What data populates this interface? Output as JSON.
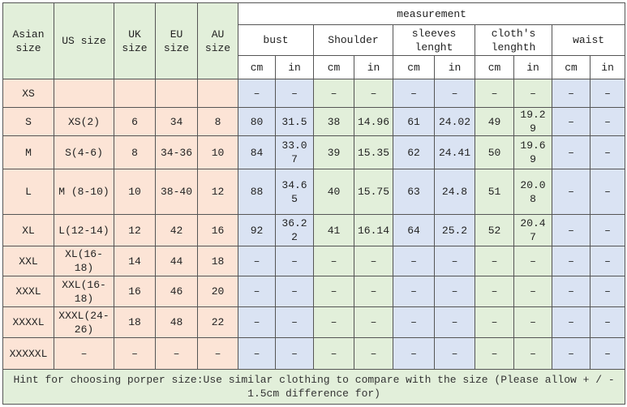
{
  "header": {
    "left": [
      "Asian size",
      "US size",
      "UK size",
      "EU size",
      "AU size"
    ],
    "measurement": "measurement",
    "groups": [
      "bust",
      "Shoulder",
      "sleeves lenght",
      "cloth's lenghth",
      "waist"
    ],
    "units": [
      "cm",
      "in",
      "cm",
      "in",
      "cm",
      "in",
      "cm",
      "in",
      "cm",
      "in"
    ]
  },
  "rows": [
    [
      "XS",
      "",
      "",
      "",
      "",
      "–",
      "–",
      "–",
      "–",
      "–",
      "–",
      "–",
      "–",
      "–",
      "–"
    ],
    [
      "S",
      "XS(2)",
      6,
      34,
      8,
      80,
      31.5,
      38,
      14.96,
      61,
      24.02,
      49,
      19.29,
      "–",
      "–"
    ],
    [
      "M",
      "S(4-6)",
      8,
      "34-36",
      10,
      84,
      33.07,
      39,
      15.35,
      62,
      24.41,
      50,
      19.69,
      "–",
      "–"
    ],
    [
      "L",
      "M (8-10)",
      10,
      "38-40",
      12,
      88,
      34.65,
      40,
      15.75,
      63,
      24.8,
      51,
      20.08,
      "–",
      "–"
    ],
    [
      "XL",
      "L(12-14)",
      12,
      42,
      16,
      92,
      36.22,
      41,
      16.14,
      64,
      25.2,
      52,
      20.47,
      "–",
      "–"
    ],
    [
      "XXL",
      "XL(16-18)",
      14,
      44,
      18,
      "–",
      "–",
      "–",
      "–",
      "–",
      "–",
      "–",
      "–",
      "–",
      "–"
    ],
    [
      "XXXL",
      "XXL(16-18)",
      16,
      46,
      20,
      "–",
      "–",
      "–",
      "–",
      "–",
      "–",
      "–",
      "–",
      "–",
      "–"
    ],
    [
      "XXXXL",
      "XXXL(24-26)",
      18,
      48,
      22,
      "–",
      "–",
      "–",
      "–",
      "–",
      "–",
      "–",
      "–",
      "–",
      "–"
    ],
    [
      "XXXXXL",
      "–",
      "–",
      "–",
      "–",
      "–",
      "–",
      "–",
      "–",
      "–",
      "–",
      "–",
      "–",
      "–",
      "–"
    ]
  ],
  "hint": "Hint for choosing porper size:Use similar clothing to compare with the size (Please allow + / - 1.5cm difference for)"
}
